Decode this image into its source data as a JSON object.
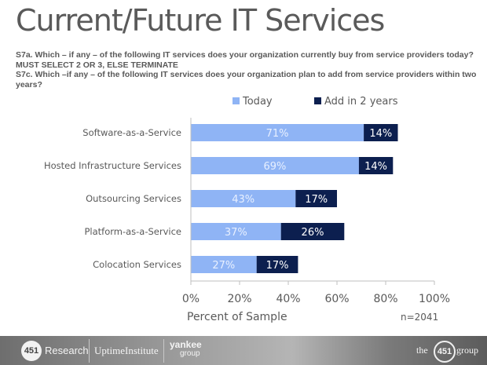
{
  "page": {
    "title": "Current/Future IT Services",
    "question_1": "S7a. Which – if any – of the following IT services does your organization currently buy from service providers today? MUST SELECT 2 OR 3, ELSE TERMINATE",
    "question_2": "S7c. Which –if any – of the following IT services does your organization plan to add from service providers within two years?"
  },
  "chart_data": {
    "type": "bar",
    "orientation": "horizontal",
    "stacked": true,
    "categories": [
      "Software-as-a-Service",
      "Hosted Infrastructure Services",
      "Outsourcing Services",
      "Platform-as-a-Service",
      "Colocation Services"
    ],
    "series": [
      {
        "name": "Today",
        "color": "#8fb4f5",
        "values": [
          71,
          69,
          43,
          37,
          27
        ],
        "labels": [
          "71%",
          "69%",
          "43%",
          "37%",
          "27%"
        ]
      },
      {
        "name": "Add in 2 years",
        "color": "#0c1f4f",
        "values": [
          14,
          14,
          17,
          26,
          17
        ],
        "labels": [
          "14%",
          "14%",
          "17%",
          "26%",
          "17%"
        ]
      }
    ],
    "xlabel": "Percent of Sample",
    "ylabel": "",
    "xlim": [
      0,
      100
    ],
    "xticks": [
      "0%",
      "20%",
      "40%",
      "60%",
      "80%",
      "100%"
    ],
    "tick_values": [
      0,
      20,
      40,
      60,
      80,
      100
    ],
    "legend_position": "top",
    "annotation": "n=2041",
    "grid": false
  },
  "footer": {
    "logos": [
      "451",
      "Research",
      "UptimeInstitute",
      "yankee",
      "group"
    ],
    "right_logo": [
      "the",
      "451",
      "group"
    ]
  }
}
